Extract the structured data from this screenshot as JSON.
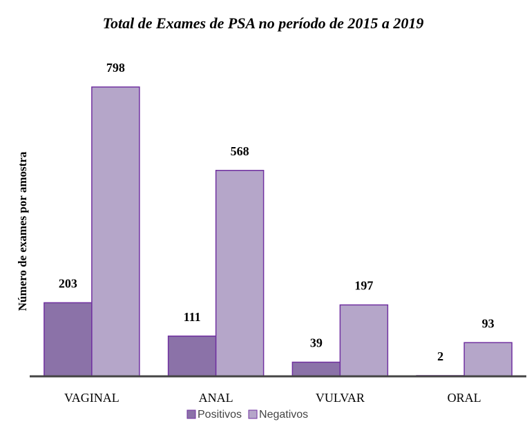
{
  "chart_data": {
    "type": "bar",
    "title": "Total de Exames de PSA no período de 2015 a 2019",
    "y_label": "Número de exames por amostra",
    "categories": [
      "VAGINAL",
      "ANAL",
      "VULVAR",
      "ORAL"
    ],
    "series": [
      {
        "name": "Positivos",
        "color": "#8b72a8",
        "values": [
          203,
          111,
          39,
          2
        ]
      },
      {
        "name": "Negativos",
        "color": "#b5a6c9",
        "values": [
          798,
          568,
          197,
          93
        ]
      }
    ],
    "legend": "bottom"
  }
}
